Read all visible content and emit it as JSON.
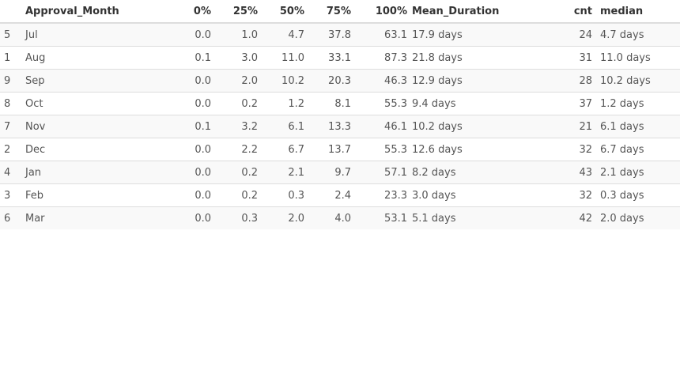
{
  "table": {
    "headers": {
      "index": "",
      "month": "Approval_Month",
      "p0": "0%",
      "p25": "25%",
      "p50": "50%",
      "p75": "75%",
      "p100": "100%",
      "mean": "Mean_Duration",
      "cnt": "cnt",
      "median": "median"
    },
    "rows": [
      {
        "index": "5",
        "month": "Jul",
        "p0": "0.0",
        "p25": "1.0",
        "p50": "4.7",
        "p75": "37.8",
        "p100": "63.1",
        "mean": "17.9 days",
        "cnt": "24",
        "median": "4.7 days"
      },
      {
        "index": "1",
        "month": "Aug",
        "p0": "0.1",
        "p25": "3.0",
        "p50": "11.0",
        "p75": "33.1",
        "p100": "87.3",
        "mean": "21.8 days",
        "cnt": "31",
        "median": "11.0 days"
      },
      {
        "index": "9",
        "month": "Sep",
        "p0": "0.0",
        "p25": "2.0",
        "p50": "10.2",
        "p75": "20.3",
        "p100": "46.3",
        "mean": "12.9 days",
        "cnt": "28",
        "median": "10.2 days"
      },
      {
        "index": "8",
        "month": "Oct",
        "p0": "0.0",
        "p25": "0.2",
        "p50": "1.2",
        "p75": "8.1",
        "p100": "55.3",
        "mean": "9.4 days",
        "cnt": "37",
        "median": "1.2 days"
      },
      {
        "index": "7",
        "month": "Nov",
        "p0": "0.1",
        "p25": "3.2",
        "p50": "6.1",
        "p75": "13.3",
        "p100": "46.1",
        "mean": "10.2 days",
        "cnt": "21",
        "median": "6.1 days"
      },
      {
        "index": "2",
        "month": "Dec",
        "p0": "0.0",
        "p25": "2.2",
        "p50": "6.7",
        "p75": "13.7",
        "p100": "55.3",
        "mean": "12.6 days",
        "cnt": "32",
        "median": "6.7 days"
      },
      {
        "index": "4",
        "month": "Jan",
        "p0": "0.0",
        "p25": "0.2",
        "p50": "2.1",
        "p75": "9.7",
        "p100": "57.1",
        "mean": "8.2 days",
        "cnt": "43",
        "median": "2.1 days"
      },
      {
        "index": "3",
        "month": "Feb",
        "p0": "0.0",
        "p25": "0.2",
        "p50": "0.3",
        "p75": "2.4",
        "p100": "23.3",
        "mean": "3.0 days",
        "cnt": "32",
        "median": "0.3 days"
      },
      {
        "index": "6",
        "month": "Mar",
        "p0": "0.0",
        "p25": "0.3",
        "p50": "2.0",
        "p75": "4.0",
        "p100": "53.1",
        "mean": "5.1 days",
        "cnt": "42",
        "median": "2.0 days"
      }
    ]
  }
}
